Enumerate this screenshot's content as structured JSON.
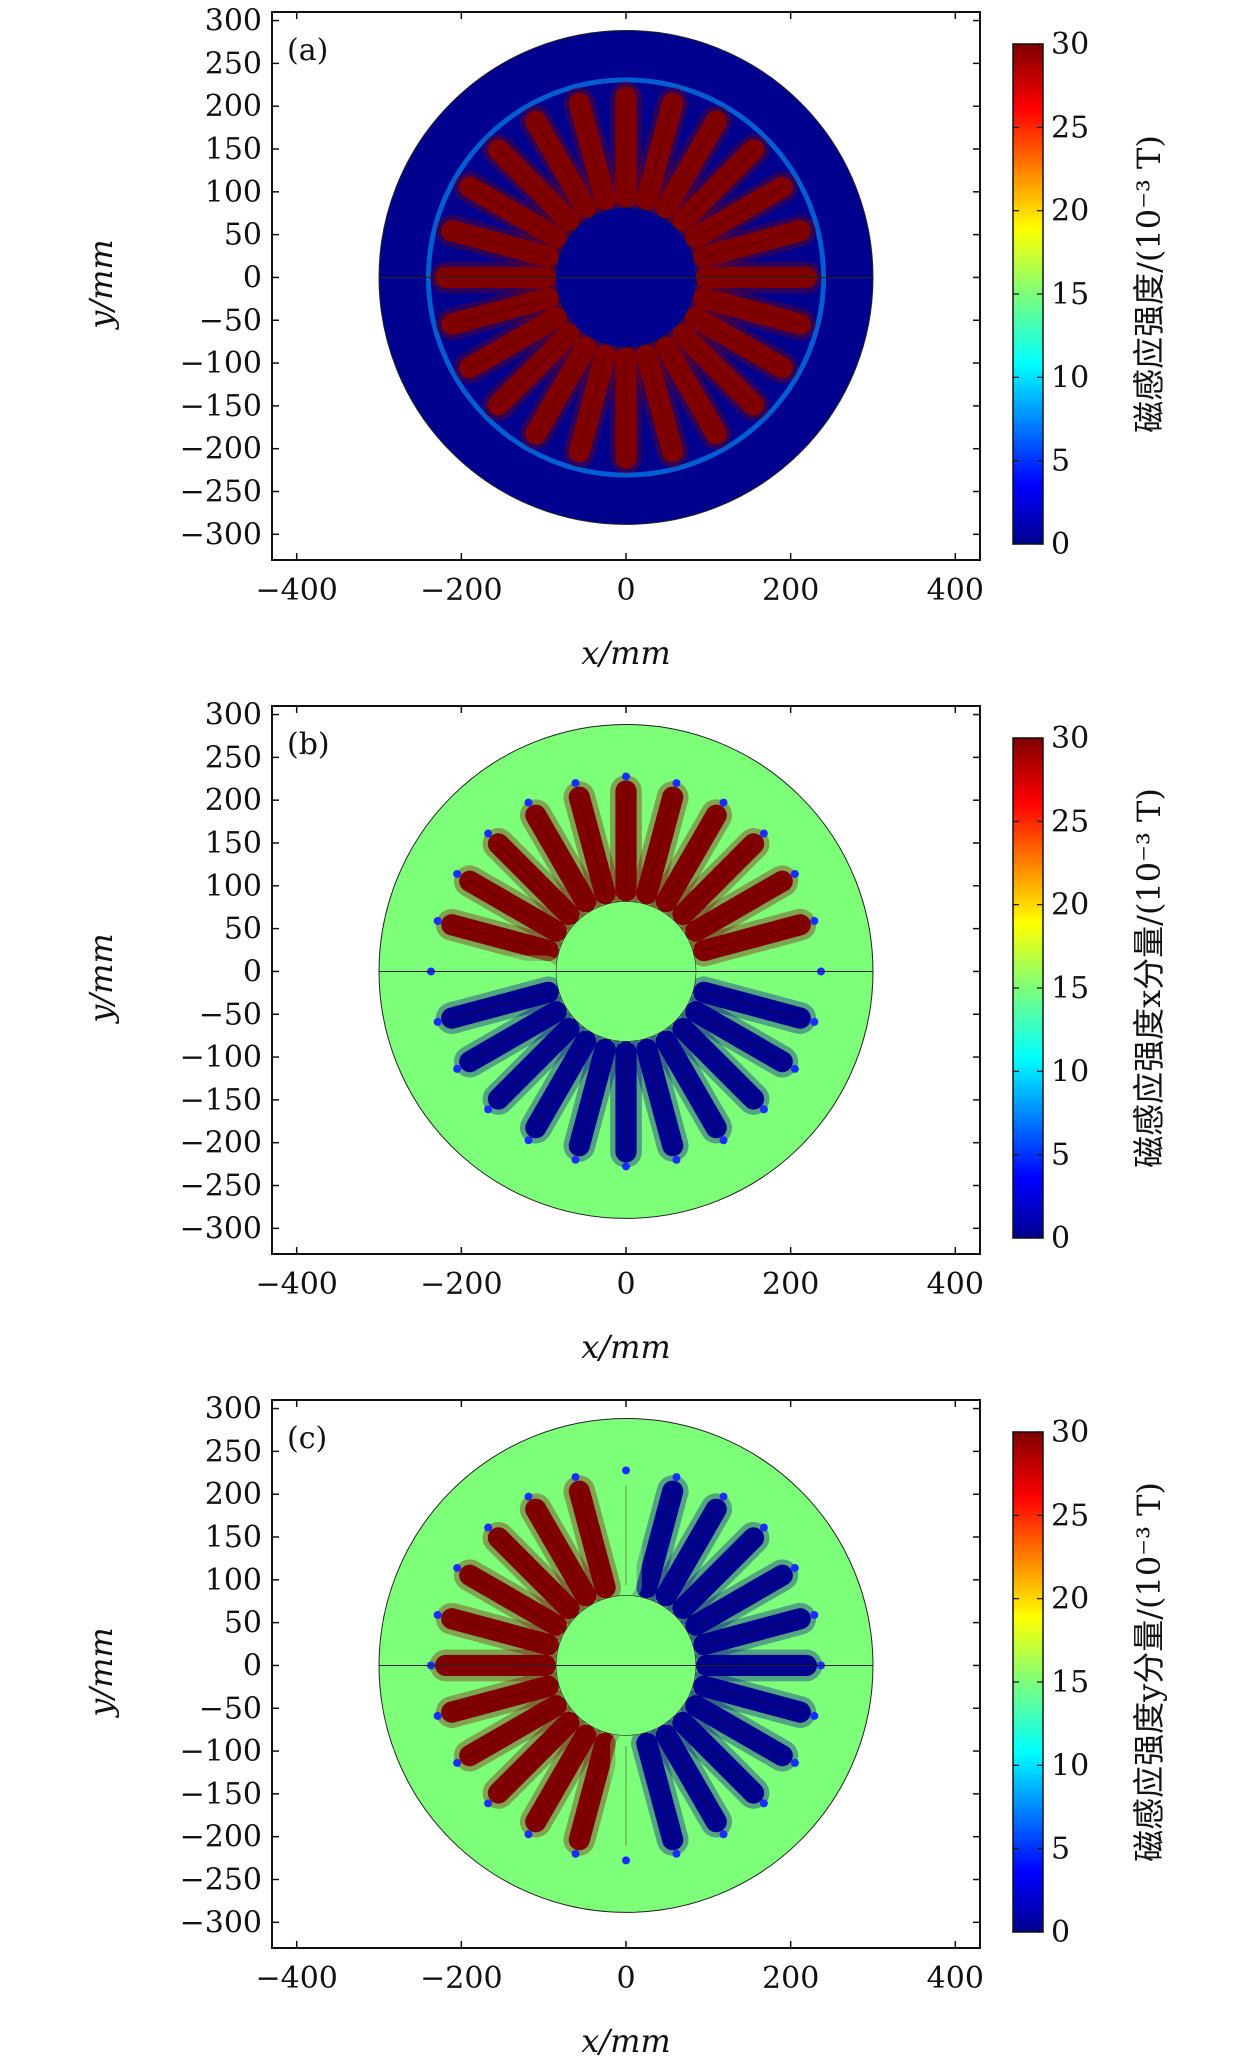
{
  "panels": [
    {
      "tag": "(a)",
      "component": "magnitude",
      "colorbar_label": "磁感应强度/(10⁻³ T)",
      "xlabel": "x/mm",
      "ylabel": "y/mm"
    },
    {
      "tag": "(b)",
      "component": "x",
      "colorbar_label": "磁感应强度x分量/(10⁻³ T)",
      "xlabel": "x/mm",
      "ylabel": "y/mm"
    },
    {
      "tag": "(c)",
      "component": "y",
      "colorbar_label": "磁感应强度y分量/(10⁻³ T)",
      "xlabel": "x/mm",
      "ylabel": "y/mm"
    }
  ],
  "chart_data": [
    {
      "type": "heatmap",
      "title": "(a)",
      "xlabel": "x/mm",
      "ylabel": "y/mm",
      "xlim": [
        -430,
        430
      ],
      "ylim": [
        -330,
        310
      ],
      "xticks": [
        -400,
        -200,
        0,
        200,
        400
      ],
      "yticks": [
        300,
        250,
        200,
        150,
        100,
        50,
        0,
        -50,
        -100,
        -150,
        -200,
        -250,
        -300
      ],
      "colorbar": {
        "label": "磁感应强度/(10⁻³ T)",
        "min": 0,
        "max": 30,
        "ticks": [
          0,
          5,
          10,
          15,
          20,
          25,
          30
        ],
        "colormap": "jet"
      },
      "geometry": {
        "outer_radius_mm": 300,
        "inner_radius_mm": 85,
        "slot_count": 24,
        "slot_outer_radius_mm": 232
      },
      "field": {
        "background": 0,
        "slots": 30
      }
    },
    {
      "type": "heatmap",
      "title": "(b)",
      "xlabel": "x/mm",
      "ylabel": "y/mm",
      "xlim": [
        -430,
        430
      ],
      "ylim": [
        -330,
        310
      ],
      "xticks": [
        -400,
        -200,
        0,
        200,
        400
      ],
      "yticks": [
        300,
        250,
        200,
        150,
        100,
        50,
        0,
        -50,
        -100,
        -150,
        -200,
        -250,
        -300
      ],
      "colorbar": {
        "label": "磁感应强度x分量/(10⁻³ T)",
        "min": 0,
        "max": 30,
        "ticks": [
          0,
          5,
          10,
          15,
          20,
          25,
          30
        ],
        "colormap": "jet"
      },
      "geometry": {
        "outer_radius_mm": 300,
        "inner_radius_mm": 85,
        "slot_count": 24,
        "slot_outer_radius_mm": 232
      },
      "field": {
        "background": 15,
        "upper_half": 30,
        "lower_half": 0
      }
    },
    {
      "type": "heatmap",
      "title": "(c)",
      "xlabel": "x/mm",
      "ylabel": "y/mm",
      "xlim": [
        -430,
        430
      ],
      "ylim": [
        -330,
        310
      ],
      "xticks": [
        -400,
        -200,
        0,
        200,
        400
      ],
      "yticks": [
        300,
        250,
        200,
        150,
        100,
        50,
        0,
        -50,
        -100,
        -150,
        -200,
        -250,
        -300
      ],
      "colorbar": {
        "label": "磁感应强度y分量/(10⁻³ T)",
        "min": 0,
        "max": 30,
        "ticks": [
          0,
          5,
          10,
          15,
          20,
          25,
          30
        ],
        "colormap": "jet"
      },
      "geometry": {
        "outer_radius_mm": 300,
        "inner_radius_mm": 85,
        "slot_count": 24,
        "slot_outer_radius_mm": 232
      },
      "field": {
        "background": 15,
        "left_half": 30,
        "right_half": 0
      }
    }
  ]
}
